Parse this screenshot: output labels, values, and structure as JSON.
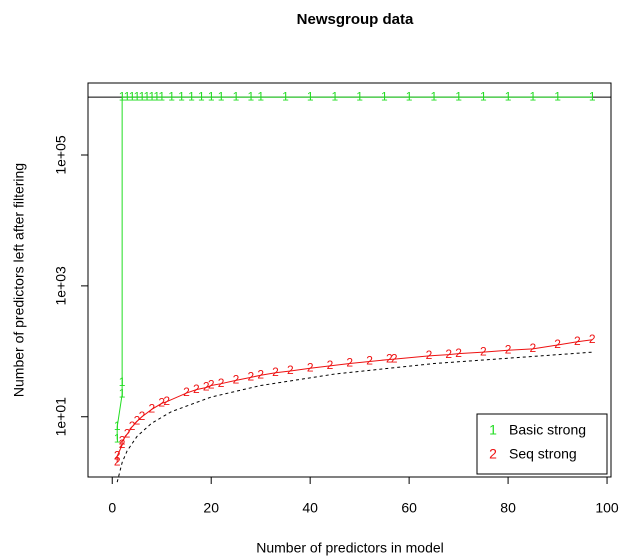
{
  "chart_data": {
    "type": "line",
    "title": "Newsgroup data",
    "xlabel": "Number of predictors in model",
    "ylabel": "Number of predictors left after filtering",
    "log_y": true,
    "xlim": [
      -4.9,
      100.8
    ],
    "xticks": [
      0,
      20,
      40,
      60,
      80,
      100
    ],
    "ylim": [
      1.2,
      1260000
    ],
    "yticks": [
      {
        "value": 10,
        "label": "1e+01"
      },
      {
        "value": 1000,
        "label": "1e+03"
      },
      {
        "value": 100000,
        "label": "1e+05"
      }
    ],
    "legend_position": "bottom-right",
    "hline": {
      "value": 767000,
      "color": "#000000"
    },
    "reference_line": {
      "color": "#000000",
      "dashed": true,
      "x": [
        1,
        2,
        3,
        5,
        8,
        12,
        20,
        30,
        45,
        65,
        97
      ],
      "values": [
        1,
        2,
        3,
        5,
        8,
        12,
        20,
        30,
        45,
        65,
        97
      ]
    },
    "series": [
      {
        "name": "Basic strong",
        "marker": "1",
        "color": "#22dd22",
        "x": [
          1,
          1,
          2,
          2,
          2,
          3,
          4,
          5,
          6,
          7,
          8,
          9,
          10,
          12,
          14,
          16,
          18,
          20,
          22,
          25,
          28,
          30,
          35,
          40,
          45,
          50,
          55,
          60,
          65,
          70,
          75,
          80,
          85,
          90,
          97
        ],
        "values": [
          4.5,
          7,
          22,
          33,
          767000,
          767000,
          767000,
          767000,
          767000,
          767000,
          767000,
          767000,
          767000,
          767000,
          767000,
          767000,
          767000,
          767000,
          767000,
          767000,
          767000,
          767000,
          767000,
          767000,
          767000,
          767000,
          767000,
          767000,
          767000,
          767000,
          767000,
          767000,
          767000,
          767000,
          767000
        ]
      },
      {
        "name": "Seq strong",
        "marker": "2",
        "color": "#ee1111",
        "x": [
          1,
          1,
          2,
          2,
          3,
          4,
          5,
          6,
          8,
          10,
          11,
          15,
          17,
          19,
          20,
          22,
          25,
          28,
          30,
          33,
          36,
          40,
          44,
          48,
          52,
          56,
          57,
          64,
          68,
          70,
          75,
          80,
          85,
          90,
          94,
          97
        ],
        "values": [
          2,
          2.5,
          3.7,
          4.2,
          5.4,
          7,
          8.5,
          10,
          13,
          16,
          17,
          23,
          26,
          28,
          30,
          32,
          36,
          40,
          43,
          47,
          50,
          55,
          60,
          65,
          70,
          75,
          76,
          85,
          89,
          92,
          97,
          104,
          109,
          125,
          140,
          150
        ]
      }
    ]
  }
}
